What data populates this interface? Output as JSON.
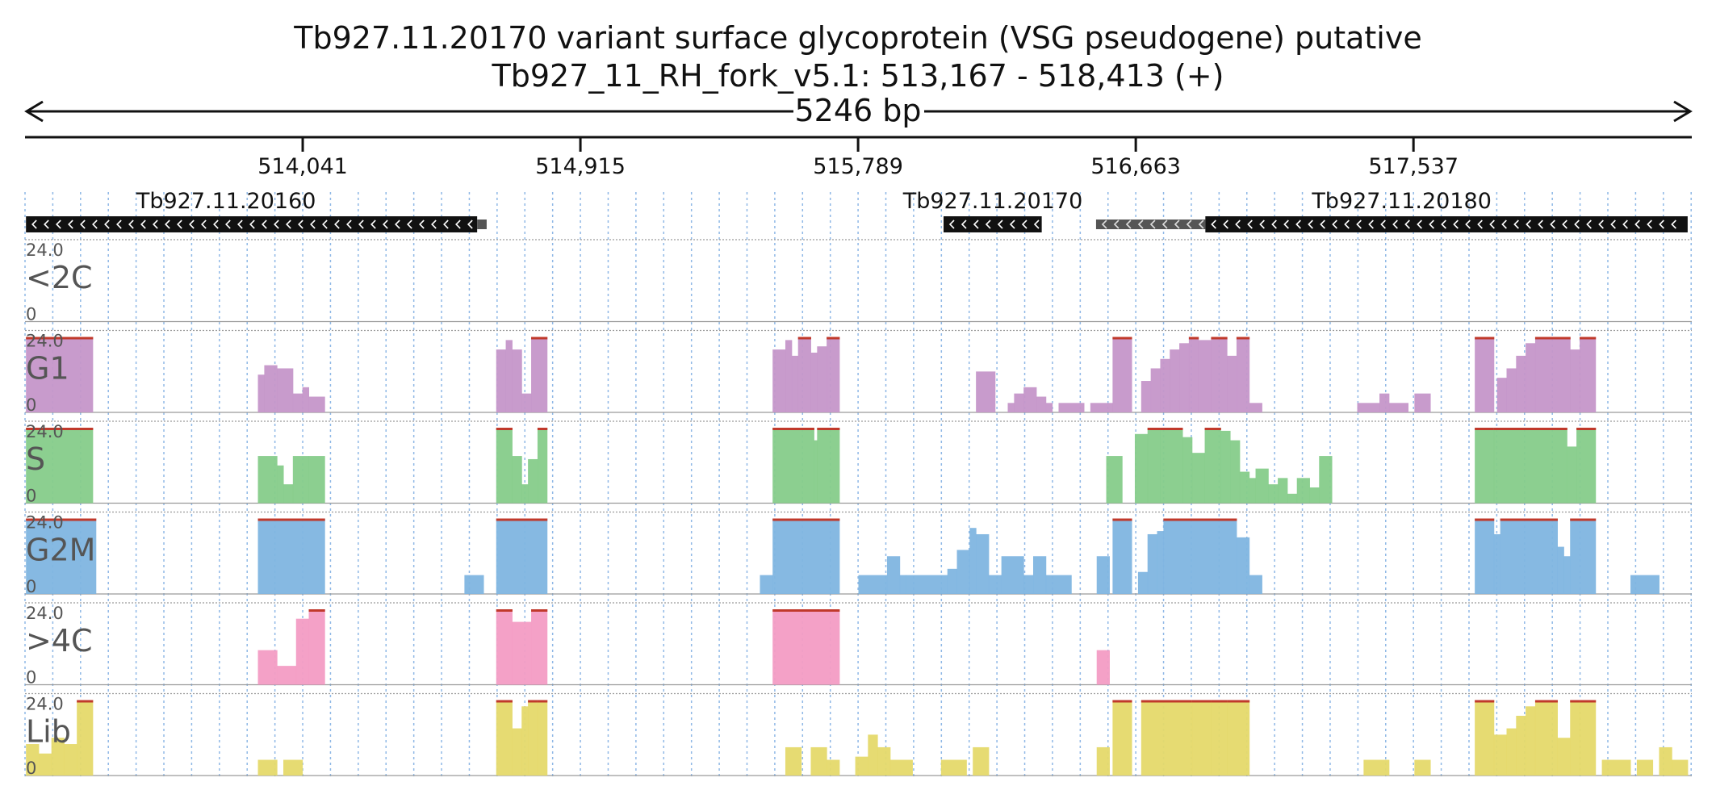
{
  "title": "Tb927.11.20170  variant surface glycoprotein (VSG  pseudogene)  putative",
  "subtitle": "Tb927_11_RH_fork_v5.1: 513,167 - 518,413 (+)",
  "span_label": "5246 bp",
  "colors": {
    "<2C": "#9a9a9a",
    "G1": "#c596c9",
    "S": "#86cc8a",
    "G2M": "#7fb5e0",
    ">4C": "#f39cc4",
    "Lib": "#e5d96a",
    "gene": "#111111",
    "overflow": "#c0392b"
  },
  "chart_data": {
    "type": "bar",
    "genome_range": [
      513167,
      518413
    ],
    "title": "Tb927.11.20170  variant surface glycoprotein (VSG  pseudogene)  putative",
    "subtitle": "Tb927_11_RH_fork_v5.1: 513,167 - 518,413 (+)",
    "ticks": [
      {
        "pos": 514041,
        "label": "514,041"
      },
      {
        "pos": 514915,
        "label": "514,915"
      },
      {
        "pos": 515789,
        "label": "515,789"
      },
      {
        "pos": 516663,
        "label": "516,663"
      },
      {
        "pos": 517537,
        "label": "517,537"
      }
    ],
    "genes": [
      {
        "name": "Tb927.11.20160",
        "start": 513170,
        "end": 514590,
        "strand": "-",
        "partial": [
          514590,
          514620
        ]
      },
      {
        "name": "Tb927.11.20170",
        "start": 516058,
        "end": 516367,
        "strand": "-"
      },
      {
        "name": "Tb927.11.20180",
        "start": 516538,
        "end": 518400,
        "strand": "-",
        "partial_start": 516538,
        "solid_start": 516882
      }
    ],
    "ymax": 24,
    "ylabel_max": "24.0",
    "ylabel_min": "0",
    "grid": true,
    "tracks": [
      {
        "name": "<2C",
        "segments": []
      },
      {
        "name": "G1",
        "segments": [
          [
            513170,
            513380,
            24
          ],
          [
            513900,
            513920,
            12
          ],
          [
            513920,
            513960,
            15
          ],
          [
            513960,
            514010,
            14
          ],
          [
            514010,
            514040,
            6
          ],
          [
            514040,
            514060,
            8
          ],
          [
            514060,
            514110,
            5
          ],
          [
            514650,
            514680,
            20
          ],
          [
            514680,
            514700,
            23
          ],
          [
            514700,
            514730,
            20
          ],
          [
            514730,
            514760,
            6
          ],
          [
            514760,
            514810,
            24
          ],
          [
            514810,
            514800,
            0
          ],
          [
            515520,
            515560,
            20
          ],
          [
            515560,
            515580,
            23
          ],
          [
            515580,
            515600,
            18
          ],
          [
            515600,
            515640,
            24
          ],
          [
            515640,
            515660,
            19
          ],
          [
            515660,
            515690,
            21
          ],
          [
            515690,
            515730,
            24
          ],
          [
            516160,
            516220,
            13
          ],
          [
            516260,
            516280,
            3
          ],
          [
            516280,
            516310,
            6
          ],
          [
            516310,
            516350,
            8
          ],
          [
            516350,
            516380,
            5
          ],
          [
            516380,
            516400,
            3
          ],
          [
            516420,
            516500,
            3
          ],
          [
            516520,
            516590,
            3
          ],
          [
            516590,
            516650,
            24
          ],
          [
            516680,
            516710,
            10
          ],
          [
            516710,
            516740,
            14
          ],
          [
            516740,
            516770,
            17
          ],
          [
            516770,
            516800,
            20
          ],
          [
            516800,
            516830,
            22
          ],
          [
            516830,
            516860,
            24
          ],
          [
            516860,
            516900,
            23
          ],
          [
            516900,
            516950,
            24
          ],
          [
            516950,
            516980,
            18
          ],
          [
            516980,
            517020,
            24
          ],
          [
            517020,
            517060,
            3
          ],
          [
            517360,
            517430,
            3
          ],
          [
            517430,
            517460,
            6
          ],
          [
            517460,
            517520,
            3
          ],
          [
            517540,
            517590,
            6
          ],
          [
            517730,
            517790,
            24
          ],
          [
            517800,
            517830,
            11
          ],
          [
            517830,
            517860,
            14
          ],
          [
            517860,
            517890,
            18
          ],
          [
            517890,
            517920,
            22
          ],
          [
            517920,
            518030,
            24
          ],
          [
            518030,
            518060,
            20
          ],
          [
            518060,
            518110,
            24
          ]
        ]
      },
      {
        "name": "S",
        "segments": [
          [
            513170,
            513380,
            24
          ],
          [
            513900,
            513960,
            15
          ],
          [
            513960,
            513980,
            12
          ],
          [
            513980,
            514010,
            6
          ],
          [
            514010,
            514060,
            15
          ],
          [
            514060,
            514110,
            15
          ],
          [
            514650,
            514700,
            24
          ],
          [
            514700,
            514730,
            15
          ],
          [
            514730,
            514750,
            6
          ],
          [
            514750,
            514780,
            14
          ],
          [
            514780,
            514810,
            24
          ],
          [
            515520,
            515650,
            24
          ],
          [
            515650,
            515660,
            20
          ],
          [
            515660,
            515730,
            24
          ],
          [
            516570,
            516620,
            15
          ],
          [
            516660,
            516700,
            22
          ],
          [
            516700,
            516740,
            24
          ],
          [
            516740,
            516810,
            24
          ],
          [
            516810,
            516840,
            21
          ],
          [
            516840,
            516880,
            16
          ],
          [
            516880,
            516930,
            24
          ],
          [
            516930,
            516960,
            23
          ],
          [
            516960,
            516990,
            20
          ],
          [
            516990,
            517020,
            10
          ],
          [
            517020,
            517040,
            8
          ],
          [
            517040,
            517080,
            11
          ],
          [
            517080,
            517110,
            6
          ],
          [
            517110,
            517140,
            8
          ],
          [
            517140,
            517170,
            3
          ],
          [
            517170,
            517210,
            8
          ],
          [
            517210,
            517240,
            5
          ],
          [
            517240,
            517280,
            15
          ],
          [
            517730,
            517790,
            24
          ],
          [
            517790,
            518020,
            24
          ],
          [
            518020,
            518050,
            18
          ],
          [
            518050,
            518110,
            24
          ]
        ]
      },
      {
        "name": "G2M",
        "segments": [
          [
            513170,
            513390,
            24
          ],
          [
            514550,
            514610,
            6
          ],
          [
            513900,
            514110,
            24
          ],
          [
            514650,
            514810,
            24
          ],
          [
            515480,
            515520,
            6
          ],
          [
            515520,
            515730,
            24
          ],
          [
            515790,
            515880,
            6
          ],
          [
            515880,
            515920,
            12
          ],
          [
            515920,
            515940,
            6
          ],
          [
            515940,
            516070,
            6
          ],
          [
            516070,
            516100,
            8
          ],
          [
            516100,
            516140,
            14
          ],
          [
            516140,
            516160,
            21
          ],
          [
            516160,
            516200,
            19
          ],
          [
            516200,
            516240,
            6
          ],
          [
            516240,
            516310,
            12
          ],
          [
            516310,
            516340,
            6
          ],
          [
            516340,
            516380,
            12
          ],
          [
            516380,
            516460,
            6
          ],
          [
            516540,
            516580,
            12
          ],
          [
            516590,
            516650,
            24
          ],
          [
            516670,
            516700,
            7
          ],
          [
            516700,
            516730,
            19
          ],
          [
            516730,
            516750,
            20
          ],
          [
            516750,
            516980,
            24
          ],
          [
            516980,
            517020,
            18
          ],
          [
            517020,
            517060,
            6
          ],
          [
            517730,
            517790,
            24
          ],
          [
            517790,
            517810,
            19
          ],
          [
            517810,
            517990,
            24
          ],
          [
            517990,
            518010,
            15
          ],
          [
            518010,
            518030,
            12
          ],
          [
            518030,
            518110,
            24
          ],
          [
            518220,
            518310,
            6
          ]
        ]
      },
      {
        "name": ">4C",
        "segments": [
          [
            513900,
            513960,
            11
          ],
          [
            513960,
            514020,
            6
          ],
          [
            514020,
            514060,
            21
          ],
          [
            514060,
            514110,
            24
          ],
          [
            514650,
            514700,
            24
          ],
          [
            514700,
            514760,
            20
          ],
          [
            514760,
            514810,
            24
          ],
          [
            515520,
            515730,
            24
          ],
          [
            516540,
            516580,
            11
          ]
        ]
      },
      {
        "name": "Lib",
        "segments": [
          [
            513170,
            513210,
            10
          ],
          [
            513210,
            513250,
            7
          ],
          [
            513250,
            513290,
            12
          ],
          [
            513290,
            513330,
            10
          ],
          [
            513330,
            513380,
            24
          ],
          [
            513900,
            513960,
            5
          ],
          [
            513980,
            514040,
            5
          ],
          [
            514650,
            514700,
            24
          ],
          [
            514700,
            514730,
            15
          ],
          [
            514730,
            514750,
            22
          ],
          [
            514750,
            514780,
            24
          ],
          [
            514780,
            514810,
            24
          ],
          [
            515560,
            515610,
            9
          ],
          [
            515640,
            515690,
            9
          ],
          [
            515690,
            515730,
            5
          ],
          [
            515780,
            515820,
            6
          ],
          [
            515820,
            515850,
            13
          ],
          [
            515850,
            515890,
            9
          ],
          [
            515890,
            515960,
            5
          ],
          [
            516050,
            516130,
            5
          ],
          [
            516150,
            516200,
            9
          ],
          [
            516540,
            516580,
            9
          ],
          [
            516590,
            516650,
            24
          ],
          [
            516680,
            516840,
            24
          ],
          [
            516840,
            516900,
            24
          ],
          [
            516900,
            516950,
            24
          ],
          [
            516950,
            517020,
            24
          ],
          [
            517380,
            517460,
            5
          ],
          [
            517540,
            517590,
            5
          ],
          [
            517730,
            517790,
            24
          ],
          [
            517790,
            517830,
            13
          ],
          [
            517830,
            517860,
            15
          ],
          [
            517860,
            517890,
            19
          ],
          [
            517890,
            517920,
            22
          ],
          [
            517920,
            517990,
            24
          ],
          [
            517990,
            518030,
            12
          ],
          [
            518030,
            518060,
            24
          ],
          [
            518060,
            518110,
            24
          ],
          [
            518130,
            518220,
            5
          ],
          [
            518240,
            518290,
            5
          ],
          [
            518310,
            518350,
            9
          ],
          [
            518350,
            518400,
            5
          ]
        ]
      }
    ]
  }
}
